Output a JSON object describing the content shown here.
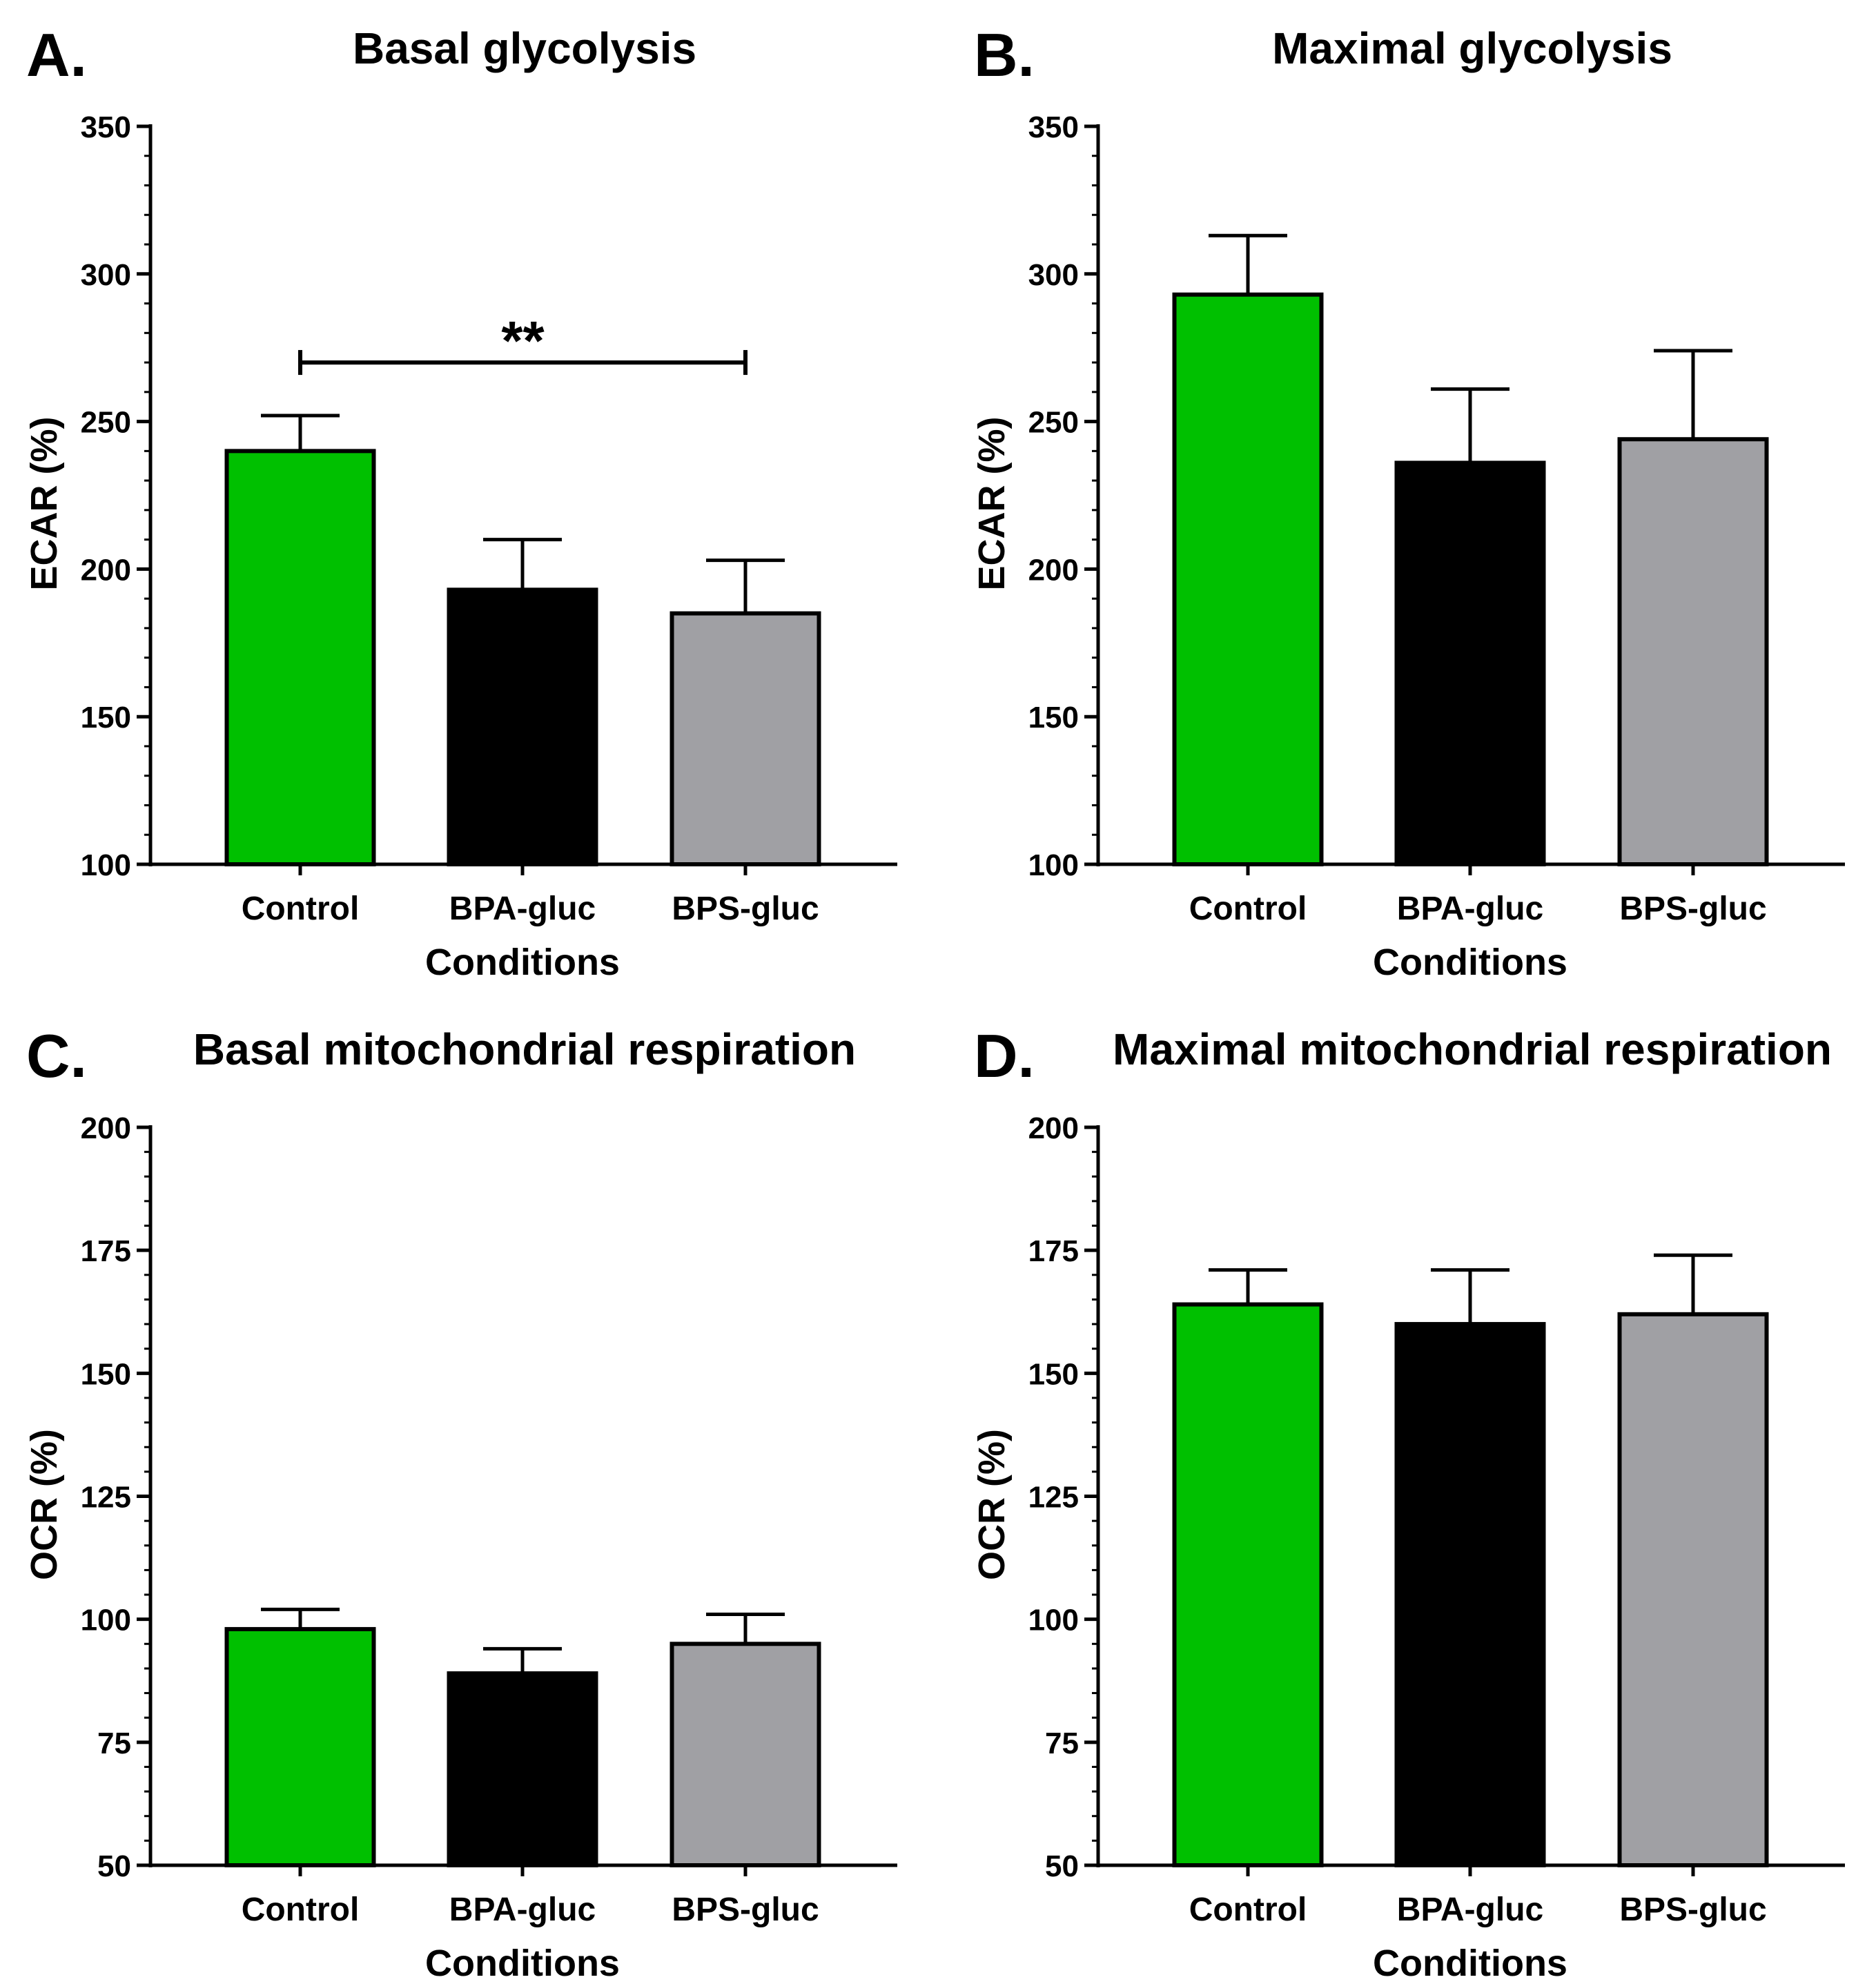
{
  "colors": {
    "Control": "#00c000",
    "BPA-gluc": "#000000",
    "BPS-gluc": "#a0a0a4",
    "outline": "#000000"
  },
  "chart_data": [
    {
      "panel_label": "A.",
      "type": "bar",
      "title": "Basal glycolysis",
      "xlabel": "Conditions",
      "ylabel": "ECAR (%)",
      "categories": [
        "Control",
        "BPA-gluc",
        "BPS-gluc"
      ],
      "values": [
        240,
        193,
        185
      ],
      "errors": [
        12,
        17,
        18
      ],
      "ylim": [
        100,
        350
      ],
      "yticks": [
        100,
        150,
        200,
        250,
        300,
        350
      ],
      "minor_tick_step": 10,
      "significance": [
        {
          "from": 0,
          "to": 2,
          "label": "**",
          "y": 270
        }
      ]
    },
    {
      "panel_label": "B.",
      "type": "bar",
      "title": "Maximal glycolysis",
      "xlabel": "Conditions",
      "ylabel": "ECAR (%)",
      "categories": [
        "Control",
        "BPA-gluc",
        "BPS-gluc"
      ],
      "values": [
        293,
        236,
        244
      ],
      "errors": [
        20,
        25,
        30
      ],
      "ylim": [
        100,
        350
      ],
      "yticks": [
        100,
        150,
        200,
        250,
        300,
        350
      ],
      "minor_tick_step": 10,
      "significance": []
    },
    {
      "panel_label": "C.",
      "type": "bar",
      "title": "Basal mitochondrial respiration",
      "xlabel": "Conditions",
      "ylabel": "OCR (%)",
      "categories": [
        "Control",
        "BPA-gluc",
        "BPS-gluc"
      ],
      "values": [
        98,
        89,
        95
      ],
      "errors": [
        4,
        5,
        6
      ],
      "ylim": [
        50,
        200
      ],
      "yticks": [
        50,
        75,
        100,
        125,
        150,
        175,
        200
      ],
      "minor_tick_step": 5,
      "significance": []
    },
    {
      "panel_label": "D.",
      "type": "bar",
      "title": "Maximal mitochondrial respiration",
      "xlabel": "Conditions",
      "ylabel": "OCR (%)",
      "categories": [
        "Control",
        "BPA-gluc",
        "BPS-gluc"
      ],
      "values": [
        164,
        160,
        162
      ],
      "errors": [
        7,
        11,
        12
      ],
      "ylim": [
        50,
        200
      ],
      "yticks": [
        50,
        75,
        100,
        125,
        150,
        175,
        200
      ],
      "minor_tick_step": 5,
      "significance": []
    }
  ]
}
